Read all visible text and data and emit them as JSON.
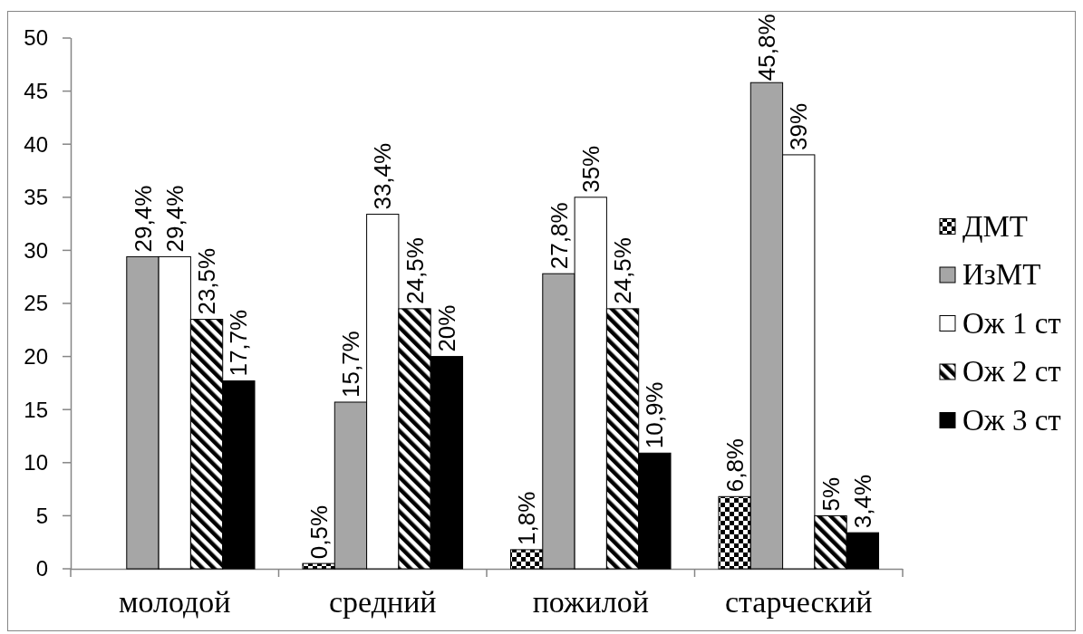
{
  "chart_data": {
    "type": "bar",
    "categories": [
      "молодой",
      "средний",
      "пожилой",
      "старческий"
    ],
    "series": [
      {
        "name": "ДМТ",
        "color": "#000000",
        "values": [
          null,
          0.5,
          1.8,
          6.8
        ],
        "value_labels": [
          null,
          "0,5%",
          "1,8%",
          "6,8%"
        ]
      },
      {
        "name": "ИзМТ",
        "color": "#a6a6a6",
        "values": [
          29.4,
          15.7,
          27.8,
          45.8
        ],
        "value_labels": [
          "29,4%",
          "15,7%",
          "27,8%",
          "45,8%"
        ]
      },
      {
        "name": "Ож 1 ст",
        "color": "#ffffff",
        "values": [
          29.4,
          33.4,
          35,
          39
        ],
        "value_labels": [
          "29,4%",
          "33,4%",
          "35%",
          "39%"
        ]
      },
      {
        "name": "Ож 2 ст",
        "color": "#000000",
        "values": [
          23.5,
          24.5,
          24.5,
          5
        ],
        "value_labels": [
          "23,5%",
          "24,5%",
          "24,5%",
          "5%"
        ]
      },
      {
        "name": "Ож 3 ст",
        "color": "#000000",
        "values": [
          17.7,
          20,
          10.9,
          3.4
        ],
        "value_labels": [
          "17,7%",
          "20%",
          "10,9%",
          "3,4%"
        ]
      }
    ],
    "ylim": [
      0,
      50
    ],
    "yticks": [
      0,
      5,
      10,
      15,
      20,
      25,
      30,
      35,
      40,
      45,
      50
    ],
    "grid": false,
    "legend": "right"
  }
}
